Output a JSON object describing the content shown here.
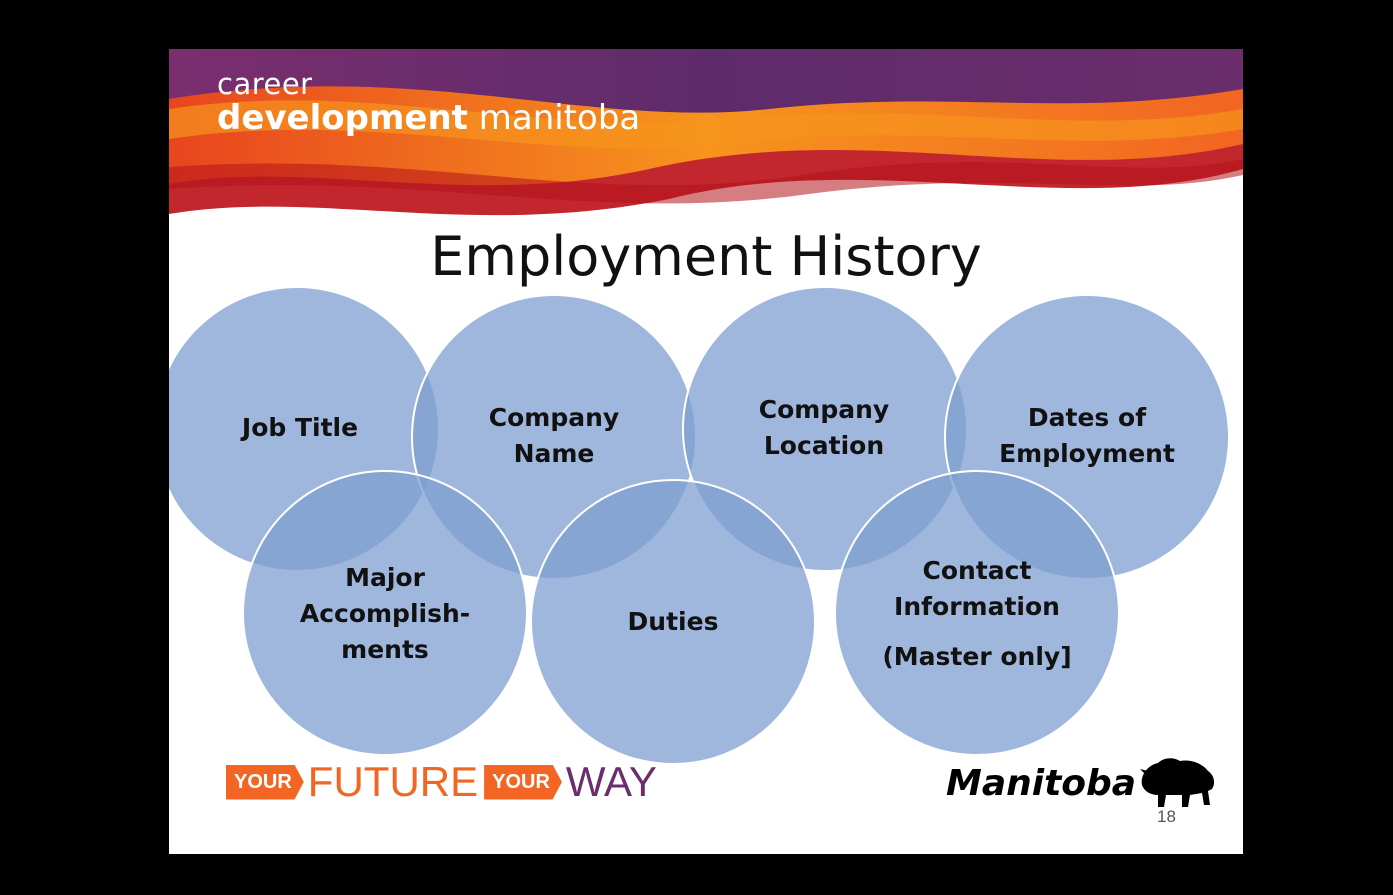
{
  "brand": {
    "line1": "career",
    "line2_bold": "development",
    "line2_light": "manitoba"
  },
  "slide_title": "Employment History",
  "circles": [
    {
      "id": "job-title",
      "lines": [
        "Job Title"
      ]
    },
    {
      "id": "company-name",
      "lines": [
        "Company",
        "Name"
      ]
    },
    {
      "id": "company-location",
      "lines": [
        "Company",
        "Location"
      ]
    },
    {
      "id": "dates-of-employment",
      "lines": [
        "Dates of",
        "Employment"
      ]
    },
    {
      "id": "major-accomplishments",
      "lines": [
        "Major",
        "Accomplish-",
        "ments"
      ]
    },
    {
      "id": "duties",
      "lines": [
        "Duties"
      ]
    },
    {
      "id": "contact-information",
      "lines": [
        "Contact",
        "Information",
        "",
        "(Master only]"
      ]
    }
  ],
  "footer": {
    "tag1": "YOUR",
    "word1": "FUTURE",
    "tag2": "YOUR",
    "word2": "WAY",
    "logo_text": "Manitoba",
    "page_number": "18"
  },
  "colors": {
    "circle_fill": "#7f9fd0",
    "circle_stroke": "#ffffff",
    "banner_orange": "#f26522",
    "banner_red": "#c1272d",
    "banner_purple": "#6b2d6b",
    "future_color": "#f26522",
    "way_color": "#6b2d6b"
  }
}
